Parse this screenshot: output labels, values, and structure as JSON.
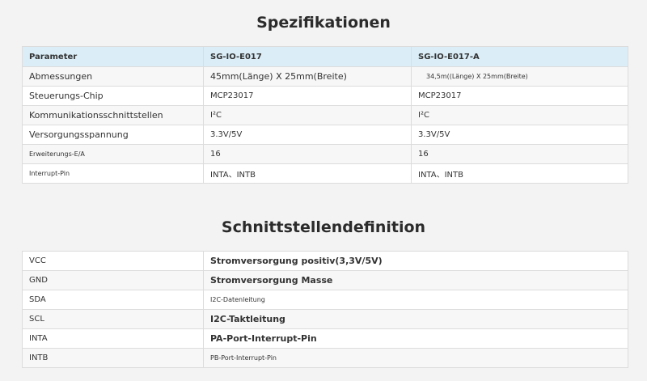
{
  "spec_section": {
    "title": "Spezifikationen",
    "header": [
      "Parameter",
      "SG-IO-E017",
      "SG-IO-E017-A"
    ],
    "rows": [
      [
        "Abmessungen",
        "45mm(Länge) X 25mm(Breite)",
        "34,5m((Länge) X 25mm(Breite)"
      ],
      [
        "Steuerungs-Chip",
        "MCP23017",
        "MCP23017"
      ],
      [
        "Kommunikationsschnittstellen",
        "I²C",
        "I²C"
      ],
      [
        "Versorgungsspannung",
        "3.3V/5V",
        "3.3V/5V"
      ],
      [
        "Erweiterungs-E/A",
        "16",
        "16"
      ],
      [
        "Interrupt-Pin",
        "INTA、INTB",
        "INTA、INTB"
      ]
    ]
  },
  "interface_section": {
    "title": "Schnittstellendefinition",
    "rows": [
      [
        "VCC",
        "Stromversorgung positiv(3,3V/5V)"
      ],
      [
        "GND",
        "Stromversorgung Masse"
      ],
      [
        "SDA",
        "I2C-Datenleitung"
      ],
      [
        "SCL",
        "I2C-Taktleitung"
      ],
      [
        "INTA",
        "PA-Port-Interrupt-Pin"
      ],
      [
        "INTB",
        "PB-Port-Interrupt-Pin"
      ]
    ]
  }
}
